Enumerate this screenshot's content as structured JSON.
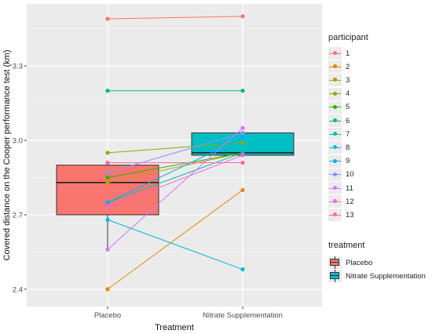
{
  "chart_data": {
    "type": "box",
    "xlabel": "Treatment",
    "ylabel": "Covered distance on the Cooper performance test (km)",
    "categories": [
      "Placebo",
      "Nitrate Supplementation"
    ],
    "ylim": [
      2.33,
      3.55
    ],
    "yticks": [
      "2.4",
      "2.7",
      "3.0",
      "3.3"
    ],
    "grid": true,
    "legend_position": "right",
    "boxes": [
      {
        "name": "Placebo",
        "min": 2.56,
        "q1": 2.7,
        "median": 2.83,
        "q3": 2.9,
        "max": 2.9,
        "color": "#f8766d"
      },
      {
        "name": "Nitrate Supplementation",
        "min": 2.94,
        "q1": 2.94,
        "median": 2.95,
        "q3": 3.03,
        "max": 3.03,
        "color": "#00bfc4"
      }
    ],
    "participants_title": "participant",
    "participants": [
      {
        "name": "1",
        "color": "#f8766d",
        "placebo": 3.49,
        "nitrate": 3.5
      },
      {
        "name": "2",
        "color": "#e18a00",
        "placebo": 2.4,
        "nitrate": 2.8
      },
      {
        "name": "3",
        "color": "#be9c00",
        "placebo": 2.83,
        "nitrate": 2.95
      },
      {
        "name": "4",
        "color": "#8cab00",
        "placebo": 2.95,
        "nitrate": 2.99
      },
      {
        "name": "5",
        "color": "#24b700",
        "placebo": 2.85,
        "nitrate": 2.95
      },
      {
        "name": "6",
        "color": "#00be70",
        "placebo": 3.2,
        "nitrate": 3.2
      },
      {
        "name": "7",
        "color": "#00c1ab",
        "placebo": 2.75,
        "nitrate": 2.95
      },
      {
        "name": "8",
        "color": "#00bbda",
        "placebo": 2.68,
        "nitrate": 2.48
      },
      {
        "name": "9",
        "color": "#00acfc",
        "placebo": 2.75,
        "nitrate": 3.01
      },
      {
        "name": "10",
        "color": "#8b93ff",
        "placebo": 2.87,
        "nitrate": 3.03
      },
      {
        "name": "11",
        "color": "#d575fe",
        "placebo": 2.56,
        "nitrate": 3.05
      },
      {
        "name": "12",
        "color": "#f962dd",
        "placebo": 2.73,
        "nitrate": 2.94
      },
      {
        "name": "13",
        "color": "#ff65ac",
        "placebo": 2.91,
        "nitrate": 2.91
      }
    ],
    "treatment_title": "treatment"
  }
}
